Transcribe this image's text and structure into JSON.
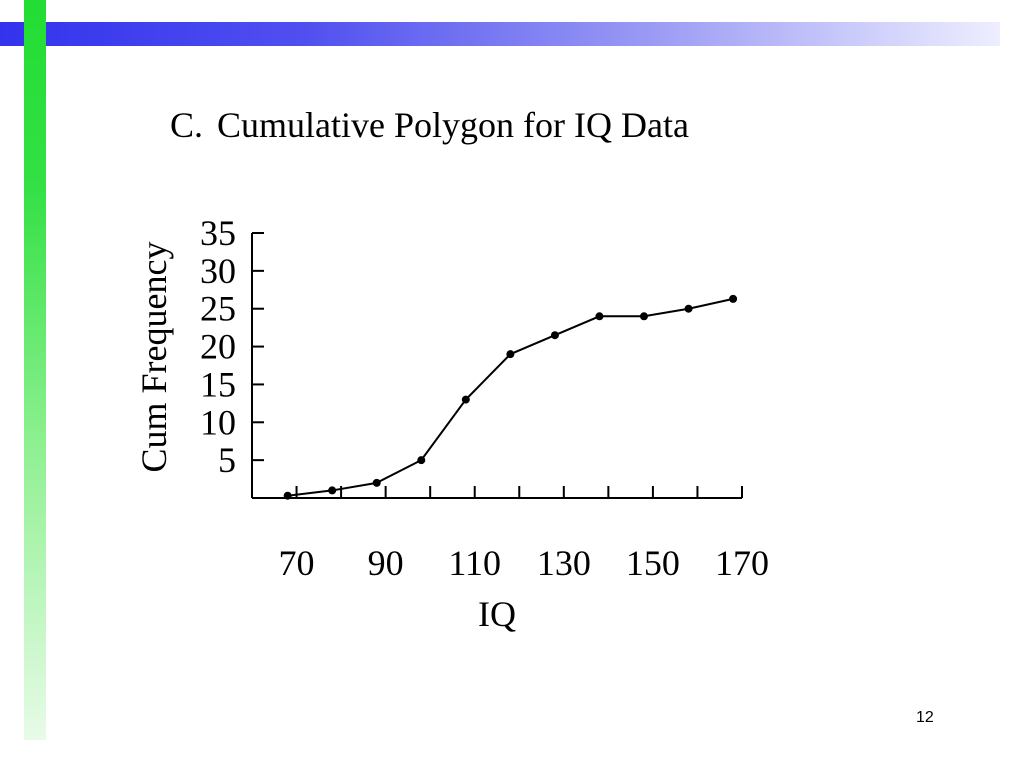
{
  "slide": {
    "title_prefix": "C.",
    "title": "Cumulative Polygon for IQ Data",
    "page_number": "12"
  },
  "colors": {
    "top_bar": "#3333ee",
    "side_bar": "#22dd33",
    "line": "#000000"
  },
  "chart_data": {
    "type": "line",
    "title": "Cumulative Polygon for IQ Data",
    "xlabel": "IQ",
    "ylabel": "Cum Frequency",
    "xlim": [
      60,
      170
    ],
    "ylim": [
      0,
      35
    ],
    "x_ticks": [
      60,
      70,
      80,
      90,
      100,
      110,
      120,
      130,
      140,
      150,
      160,
      170
    ],
    "x_tick_labels": [
      {
        "value": 70,
        "label": "70"
      },
      {
        "value": 90,
        "label": "90"
      },
      {
        "value": 110,
        "label": "110"
      },
      {
        "value": 130,
        "label": "130"
      },
      {
        "value": 150,
        "label": "150"
      },
      {
        "value": 170,
        "label": "170"
      }
    ],
    "y_ticks": [
      5,
      10,
      15,
      20,
      25,
      30,
      35
    ],
    "y_tick_labels": [
      "5",
      "10",
      "15",
      "20",
      "25",
      "30",
      "35"
    ],
    "grid": false,
    "series": [
      {
        "x": [
          68,
          78,
          88,
          98,
          108,
          118,
          128,
          138,
          148,
          158,
          168
        ],
        "y": [
          0.3,
          1,
          2,
          5,
          13,
          19,
          21.5,
          24,
          24,
          25,
          26.3
        ]
      }
    ]
  }
}
